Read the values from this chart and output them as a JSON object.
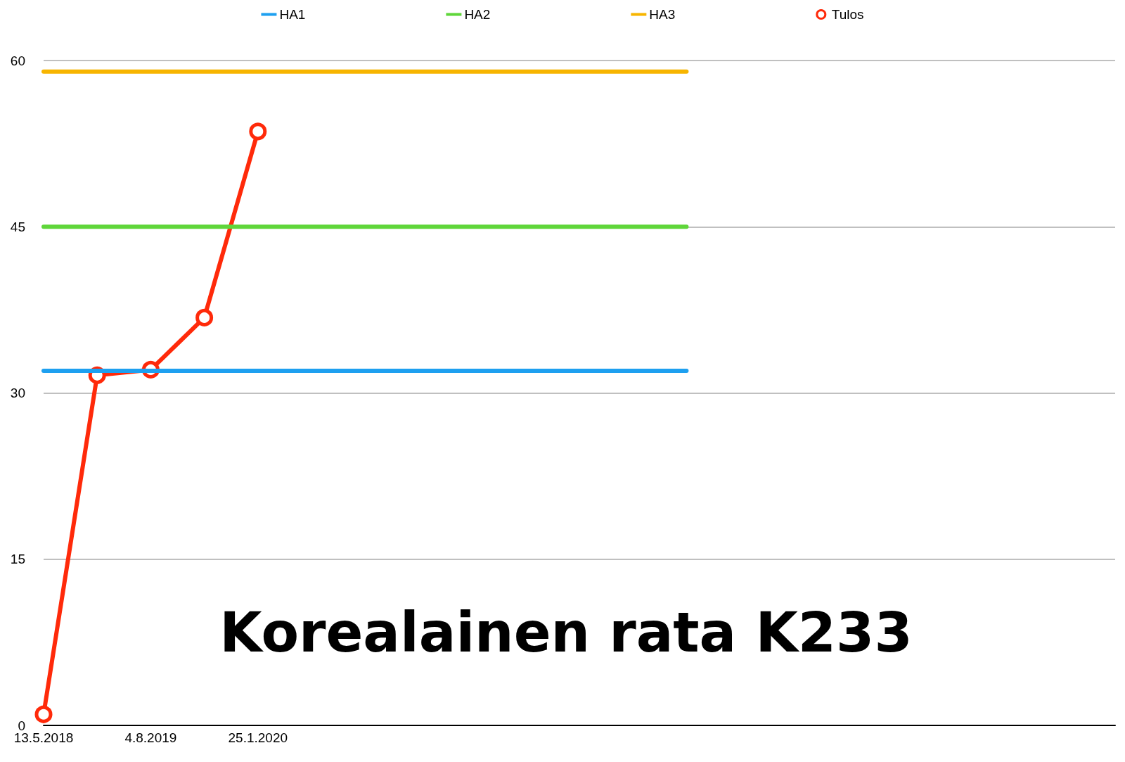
{
  "chart_data": {
    "type": "line",
    "title": "Korealainen rata K233",
    "categories": [
      "13.5.2018",
      null,
      "4.8.2019",
      null,
      "25.1.2020",
      null,
      null,
      null,
      null,
      null,
      null,
      null,
      null,
      null,
      null,
      null,
      null,
      null,
      null,
      null,
      null
    ],
    "series": [
      {
        "name": "HA1",
        "color": "#1ea0f0",
        "marker": "none",
        "values": [
          32,
          32,
          32,
          32,
          32,
          32,
          32,
          32,
          32,
          32,
          32,
          32,
          32,
          null,
          null,
          null,
          null,
          null,
          null,
          null,
          null
        ]
      },
      {
        "name": "HA2",
        "color": "#5fd63a",
        "marker": "none",
        "values": [
          45,
          45,
          45,
          45,
          45,
          45,
          45,
          45,
          45,
          45,
          45,
          45,
          45,
          null,
          null,
          null,
          null,
          null,
          null,
          null,
          null
        ]
      },
      {
        "name": "HA3",
        "color": "#f7b500",
        "marker": "none",
        "values": [
          59,
          59,
          59,
          59,
          59,
          59,
          59,
          59,
          59,
          59,
          59,
          59,
          59,
          null,
          null,
          null,
          null,
          null,
          null,
          null,
          null
        ]
      },
      {
        "name": "Tulos",
        "color": "#ff2a0a",
        "marker": "circle",
        "values": [
          1,
          31.6,
          32.1,
          36.8,
          53.6,
          null,
          null,
          null,
          null,
          null,
          null,
          null,
          null,
          null,
          null,
          null,
          null,
          null,
          null,
          null,
          null
        ]
      }
    ],
    "ylim": [
      0,
      60
    ],
    "yticks": [
      0,
      15,
      30,
      45,
      60
    ],
    "grid": "y",
    "legend": "top",
    "line_style": "solid"
  }
}
